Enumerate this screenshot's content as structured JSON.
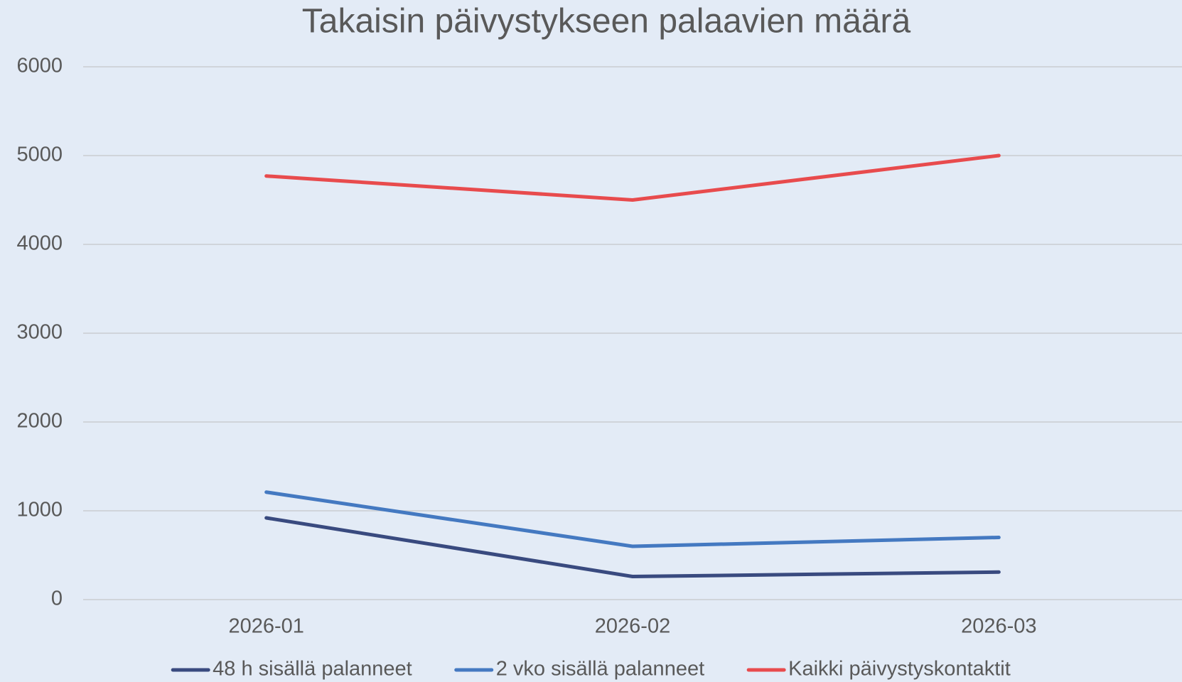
{
  "chart_data": {
    "type": "line",
    "title": "Takaisin päivystykseen palaavien määrä",
    "categories": [
      "2026-01",
      "2026-02",
      "2026-03"
    ],
    "series": [
      {
        "name": "48 h sisällä palanneet",
        "color": "#394a7f",
        "values": [
          920,
          260,
          310
        ]
      },
      {
        "name": "2 vko sisällä palanneet",
        "color": "#4479c1",
        "values": [
          1210,
          600,
          700
        ]
      },
      {
        "name": "Kaikki päivystyskontaktit",
        "color": "#e84b4d",
        "values": [
          4770,
          4500,
          5000
        ]
      }
    ],
    "ylim": [
      0,
      6000
    ],
    "yticks": [
      0,
      1000,
      2000,
      3000,
      4000,
      5000,
      6000
    ],
    "grid": true,
    "legend": "bottom"
  }
}
